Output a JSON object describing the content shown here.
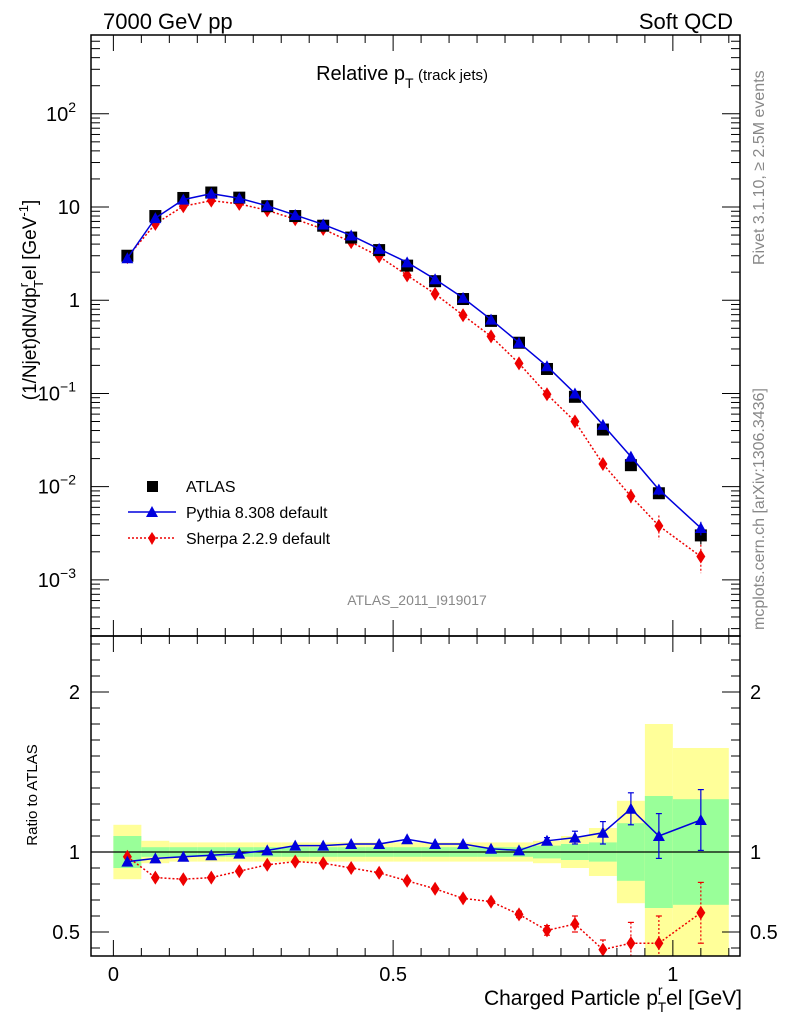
{
  "header": {
    "left": "7000 GeV pp",
    "right": "Soft QCD"
  },
  "side_text": {
    "rivet": "Rivet 3.1.10, ≥ 2.5M events",
    "mcplots": "mcplots.cern.ch [arXiv:1306.3436]"
  },
  "chart_data": [
    {
      "type": "scatter",
      "panel": "main",
      "title_main": "Relative p",
      "title_sub": "T",
      "title_suffix": "(track jets)",
      "ylabel": "(1/Njet)dN/dpᵀrel [GeV⁻¹]",
      "ylabel_parts": {
        "a": "(1/Njet)dN/dp",
        "sup": "r",
        "sub": "T",
        "b": "el [GeV",
        "sup2": "-1",
        "c": "]"
      },
      "yscale": "log",
      "ylim": [
        0.00025,
        700
      ],
      "xlim": [
        -0.04,
        1.12
      ],
      "y_ticks": [
        {
          "value": 0.001,
          "base": "10",
          "exp": "−3"
        },
        {
          "value": 0.01,
          "base": "10",
          "exp": "−2"
        },
        {
          "value": 0.1,
          "base": "10",
          "exp": "−1"
        },
        {
          "value": 1,
          "base": "1",
          "exp": ""
        },
        {
          "value": 10,
          "base": "10",
          "exp": ""
        },
        {
          "value": 100,
          "base": "10",
          "exp": "2"
        }
      ],
      "legend_position": "bottom-left",
      "reference_label": "ATLAS_2011_I919017",
      "x": [
        0.025,
        0.075,
        0.125,
        0.175,
        0.225,
        0.275,
        0.325,
        0.375,
        0.425,
        0.475,
        0.525,
        0.575,
        0.625,
        0.675,
        0.725,
        0.775,
        0.825,
        0.875,
        0.925,
        0.975,
        1.05
      ],
      "series": [
        {
          "name": "ATLAS",
          "color": "#000000",
          "marker": "square",
          "values": [
            3.0,
            8.0,
            12.5,
            14.3,
            12.6,
            10.2,
            8.0,
            6.3,
            4.7,
            3.45,
            2.35,
            1.6,
            1.03,
            0.6,
            0.35,
            0.183,
            0.092,
            0.041,
            0.017,
            0.0085,
            0.003
          ],
          "errors": [
            0,
            0,
            0,
            0,
            0,
            0,
            0,
            0,
            0,
            0,
            0,
            0,
            0,
            0,
            0,
            0,
            0,
            0,
            0,
            0.0006,
            0.0006
          ]
        },
        {
          "name": "Pythia 8.308 default",
          "color": "#0000dd",
          "marker": "triangle",
          "line": "solid",
          "values": [
            2.82,
            7.6,
            12.0,
            13.9,
            12.4,
            10.3,
            8.2,
            6.5,
            4.95,
            3.55,
            2.55,
            1.68,
            1.06,
            0.62,
            0.35,
            0.196,
            0.1,
            0.046,
            0.021,
            0.0093,
            0.0036
          ],
          "errors": [
            0,
            0,
            0,
            0,
            0,
            0,
            0,
            0,
            0,
            0,
            0,
            0,
            0,
            0,
            0,
            0,
            0,
            0.003,
            0.0025,
            0.0012,
            0.0006
          ]
        },
        {
          "name": "Sherpa 2.2.9 default",
          "color": "#ee0000",
          "marker": "diamond",
          "line": "dotted",
          "values": [
            2.9,
            6.6,
            10.2,
            11.7,
            10.8,
            9.2,
            7.4,
            5.8,
            4.2,
            2.95,
            1.85,
            1.17,
            0.69,
            0.41,
            0.21,
            0.098,
            0.05,
            0.0175,
            0.0079,
            0.0038,
            0.00178
          ],
          "errors": [
            0,
            0,
            0,
            0,
            0,
            0,
            0,
            0,
            0,
            0,
            0,
            0,
            0,
            0,
            0,
            0,
            0.004,
            0.002,
            0.0015,
            0.0011,
            0.0006
          ]
        }
      ]
    },
    {
      "type": "scatter",
      "panel": "ratio",
      "ylabel": "Ratio to ATLAS",
      "xlabel": "Charged Particle p",
      "xlabel_sup": "r",
      "xlabel_sub": "T",
      "xlabel_suffix": "el [GeV]",
      "ylim": [
        0.35,
        2.35
      ],
      "xlim": [
        -0.04,
        1.12
      ],
      "x_ticks": [
        {
          "value": 0,
          "label": "0"
        },
        {
          "value": 0.5,
          "label": "0.5"
        },
        {
          "value": 1,
          "label": "1"
        }
      ],
      "y_ticks": [
        {
          "value": 0.5,
          "label": "0.5"
        },
        {
          "value": 1,
          "label": "1"
        },
        {
          "value": 2,
          "label": "2"
        }
      ],
      "band_edges": [
        0.0,
        0.05,
        0.1,
        0.15,
        0.2,
        0.25,
        0.3,
        0.35,
        0.4,
        0.45,
        0.5,
        0.55,
        0.6,
        0.65,
        0.7,
        0.75,
        0.8,
        0.85,
        0.9,
        0.95,
        1.0,
        1.1
      ],
      "band_stat": [
        0.1,
        0.03,
        0.03,
        0.03,
        0.03,
        0.03,
        0.03,
        0.03,
        0.03,
        0.03,
        0.03,
        0.03,
        0.03,
        0.03,
        0.03,
        0.04,
        0.05,
        0.06,
        0.18,
        0.35,
        0.33
      ],
      "band_total": [
        0.17,
        0.07,
        0.06,
        0.06,
        0.06,
        0.06,
        0.06,
        0.06,
        0.06,
        0.06,
        0.06,
        0.06,
        0.06,
        0.06,
        0.06,
        0.07,
        0.1,
        0.15,
        0.32,
        0.8,
        0.65
      ],
      "band_colors": {
        "total": "#ffff99",
        "stat": "#99ff99"
      },
      "x": [
        0.025,
        0.075,
        0.125,
        0.175,
        0.225,
        0.275,
        0.325,
        0.375,
        0.425,
        0.475,
        0.525,
        0.575,
        0.625,
        0.675,
        0.725,
        0.775,
        0.825,
        0.875,
        0.925,
        0.975,
        1.05
      ],
      "series": [
        {
          "name": "Pythia 8.308 default",
          "color": "#0000dd",
          "marker": "triangle",
          "line": "solid",
          "values": [
            0.94,
            0.96,
            0.97,
            0.98,
            0.99,
            1.01,
            1.04,
            1.04,
            1.05,
            1.05,
            1.08,
            1.05,
            1.05,
            1.02,
            1.01,
            1.07,
            1.09,
            1.12,
            1.27,
            1.1,
            1.2
          ],
          "errors": [
            0,
            0,
            0,
            0,
            0,
            0,
            0,
            0,
            0,
            0,
            0,
            0,
            0,
            0,
            0,
            0.02,
            0.04,
            0.07,
            0.1,
            0.14,
            0.19
          ]
        },
        {
          "name": "Sherpa 2.2.9 default",
          "color": "#ee0000",
          "marker": "diamond",
          "line": "dotted",
          "values": [
            0.97,
            0.84,
            0.83,
            0.84,
            0.88,
            0.92,
            0.94,
            0.93,
            0.9,
            0.87,
            0.82,
            0.77,
            0.71,
            0.69,
            0.61,
            0.51,
            0.55,
            0.39,
            0.43,
            0.43,
            0.62
          ],
          "errors": [
            0,
            0,
            0,
            0,
            0,
            0,
            0,
            0,
            0,
            0,
            0,
            0,
            0,
            0,
            0.02,
            0.03,
            0.05,
            0.06,
            0.13,
            0.17,
            0.19
          ]
        }
      ]
    }
  ]
}
